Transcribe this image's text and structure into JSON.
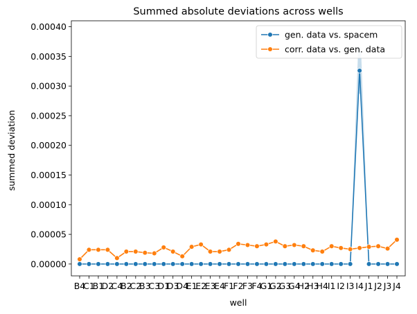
{
  "chart_data": {
    "type": "line",
    "title": "Summed absolute deviations across wells",
    "xlabel": "well",
    "ylabel": "summed deviation",
    "ylim": [
      -2e-05,
      0.00041
    ],
    "yticks": [
      0.0,
      5e-05,
      0.0001,
      0.00015,
      0.0002,
      0.00025,
      0.0003,
      0.00035,
      0.0004
    ],
    "ytick_labels": [
      "0.00000",
      "0.00005",
      "0.00010",
      "0.00015",
      "0.00020",
      "0.00025",
      "0.00030",
      "0.00035",
      "0.00040"
    ],
    "categories": [
      "B4",
      "C1",
      "B1",
      "D2",
      "C4",
      "B2",
      "C2",
      "B3",
      "C3",
      "D1",
      "D3",
      "D4",
      "E1",
      "E2",
      "E3",
      "E4",
      "F1",
      "F2",
      "F3",
      "F4",
      "G1",
      "G2",
      "G3",
      "G4",
      "H2",
      "H3",
      "H4",
      "I1",
      "I2",
      "I3",
      "I4",
      "J1",
      "J2",
      "J3",
      "J4"
    ],
    "grid": false,
    "legend_position": "top-right",
    "series": [
      {
        "name": "gen. data vs. spacem",
        "color": "#1f77b4",
        "values": [
          0,
          0,
          0,
          0,
          0,
          0,
          0,
          0,
          0,
          0,
          0,
          0,
          0,
          0,
          0,
          0,
          0,
          0,
          0,
          0,
          0,
          0,
          0,
          0,
          0,
          0,
          0,
          0,
          0,
          0,
          0.000326,
          0,
          0,
          0,
          0
        ]
      },
      {
        "name": "corr. data vs. gen. data",
        "color": "#ff7f0e",
        "values": [
          8e-06,
          2.4e-05,
          2.4e-05,
          2.4e-05,
          1e-05,
          2.1e-05,
          2.1e-05,
          1.9e-05,
          1.8e-05,
          2.8e-05,
          2.1e-05,
          1.3e-05,
          2.9e-05,
          3.3e-05,
          2.1e-05,
          2.1e-05,
          2.4e-05,
          3.4e-05,
          3.2e-05,
          3e-05,
          3.3e-05,
          3.8e-05,
          3e-05,
          3.2e-05,
          3e-05,
          2.3e-05,
          2.1e-05,
          3e-05,
          2.7e-05,
          2.5e-05,
          2.7e-05,
          2.9e-05,
          3e-05,
          2.6e-05,
          4.1e-05
        ]
      }
    ]
  }
}
